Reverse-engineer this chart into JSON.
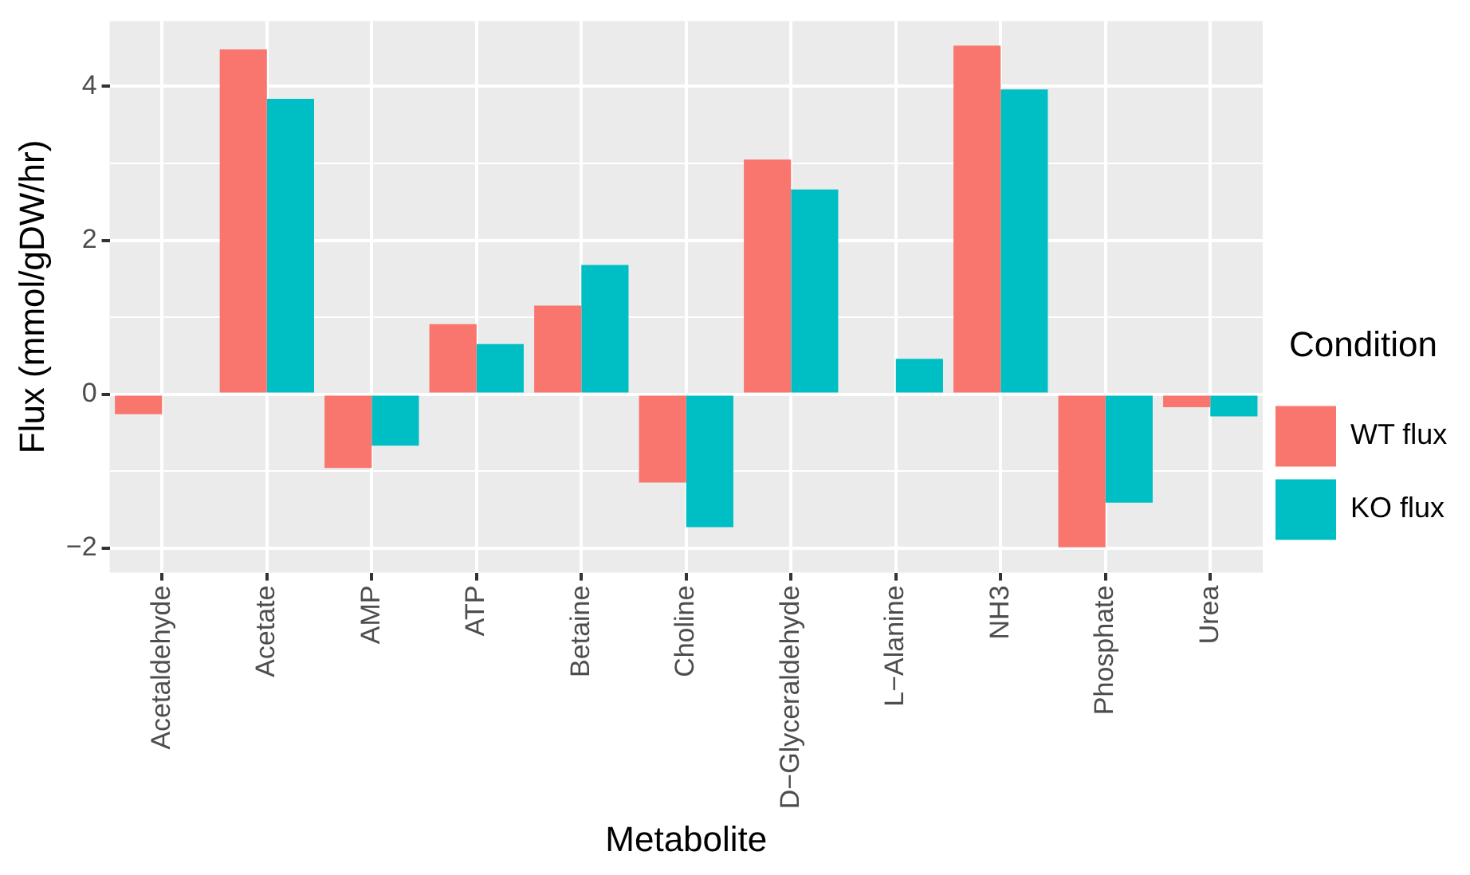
{
  "chart_data": {
    "type": "bar",
    "xlabel": "Metabolite",
    "ylabel": "Flux (mmol/gDW/hr)",
    "legend_title": "Condition",
    "categories": [
      "Acetaldehyde",
      "Acetate",
      "AMP",
      "ATP",
      "Betaine",
      "Choline",
      "D−Glyceraldehyde",
      "L−Alanine",
      "NH3",
      "Phosphate",
      "Urea"
    ],
    "series": [
      {
        "name": "WT flux",
        "color": "#f8766d",
        "values": [
          -0.26,
          4.48,
          -0.96,
          0.91,
          1.15,
          -1.15,
          3.05,
          0,
          4.53,
          -1.99,
          -0.17
        ]
      },
      {
        "name": "KO flux",
        "color": "#00bfc4",
        "values": [
          0,
          3.84,
          -0.67,
          0.65,
          1.68,
          -1.73,
          2.66,
          0.46,
          3.96,
          -1.41,
          -0.29
        ]
      }
    ],
    "ylim": [
      -2.32,
      4.85
    ],
    "yticks": [
      -2,
      {
        "value": -1,
        "label": null
      },
      0,
      {
        "value": 1,
        "label": null
      },
      2,
      {
        "value": 3,
        "label": null
      },
      4
    ],
    "grid": true,
    "legend": "right"
  }
}
